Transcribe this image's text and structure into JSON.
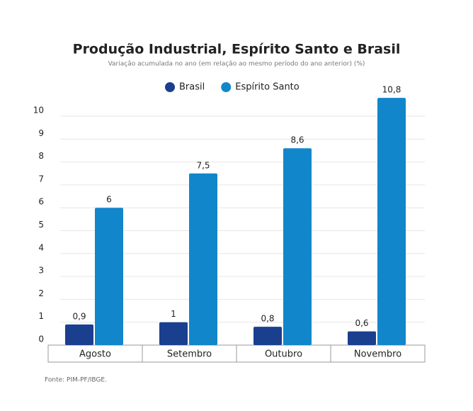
{
  "chart_data": {
    "type": "bar",
    "title": "Produção Industrial, Espírito Santo e Brasil",
    "subtitle": "Variação acumulada no ano (em relação ao mesmo período do ano anterior) (%)",
    "categories": [
      "Agosto",
      "Setembro",
      "Outubro",
      "Novembro"
    ],
    "series": [
      {
        "name": "Brasil",
        "color": "#1b3f8f",
        "values": [
          0.9,
          1,
          0.8,
          0.6
        ],
        "value_labels": [
          "0,9",
          "1",
          "0,8",
          "0,6"
        ]
      },
      {
        "name": "Espírito Santo",
        "color": "#1286cb",
        "values": [
          6,
          7.5,
          8.6,
          10.8
        ],
        "value_labels": [
          "6",
          "7,5",
          "8,6",
          "10,8"
        ]
      }
    ],
    "ylim": [
      0,
      11
    ],
    "yticks": [
      0,
      1,
      2,
      3,
      4,
      5,
      6,
      7,
      8,
      9,
      10
    ],
    "grid": true,
    "legend": "top",
    "source": "Fonte: PIM-PF/IBGE."
  }
}
